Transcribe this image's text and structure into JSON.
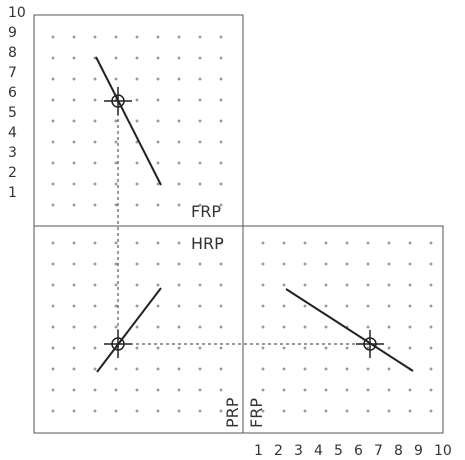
{
  "colors": {
    "background": "#ffffff",
    "frame": "#555555",
    "grid_dot": "#777777",
    "line": "#222222",
    "dashed_projector": "#333333",
    "text": "#333333"
  },
  "top_numbers": [
    "10",
    "9",
    "8",
    "7",
    "6",
    "5",
    "4",
    "3",
    "2",
    "1"
  ],
  "bottom_numbers": [
    "1",
    "2",
    "3",
    "4",
    "5",
    "6",
    "7",
    "8",
    "9",
    "10"
  ],
  "planes": {
    "frontal": {
      "label": "FRP"
    },
    "horizontal": {
      "label": "HRP"
    },
    "profile_left": {
      "label": "PRP"
    },
    "profile_right": {
      "label": "FRP"
    }
  },
  "icons": {
    "point_marker": "crosshair-circle-icon"
  }
}
